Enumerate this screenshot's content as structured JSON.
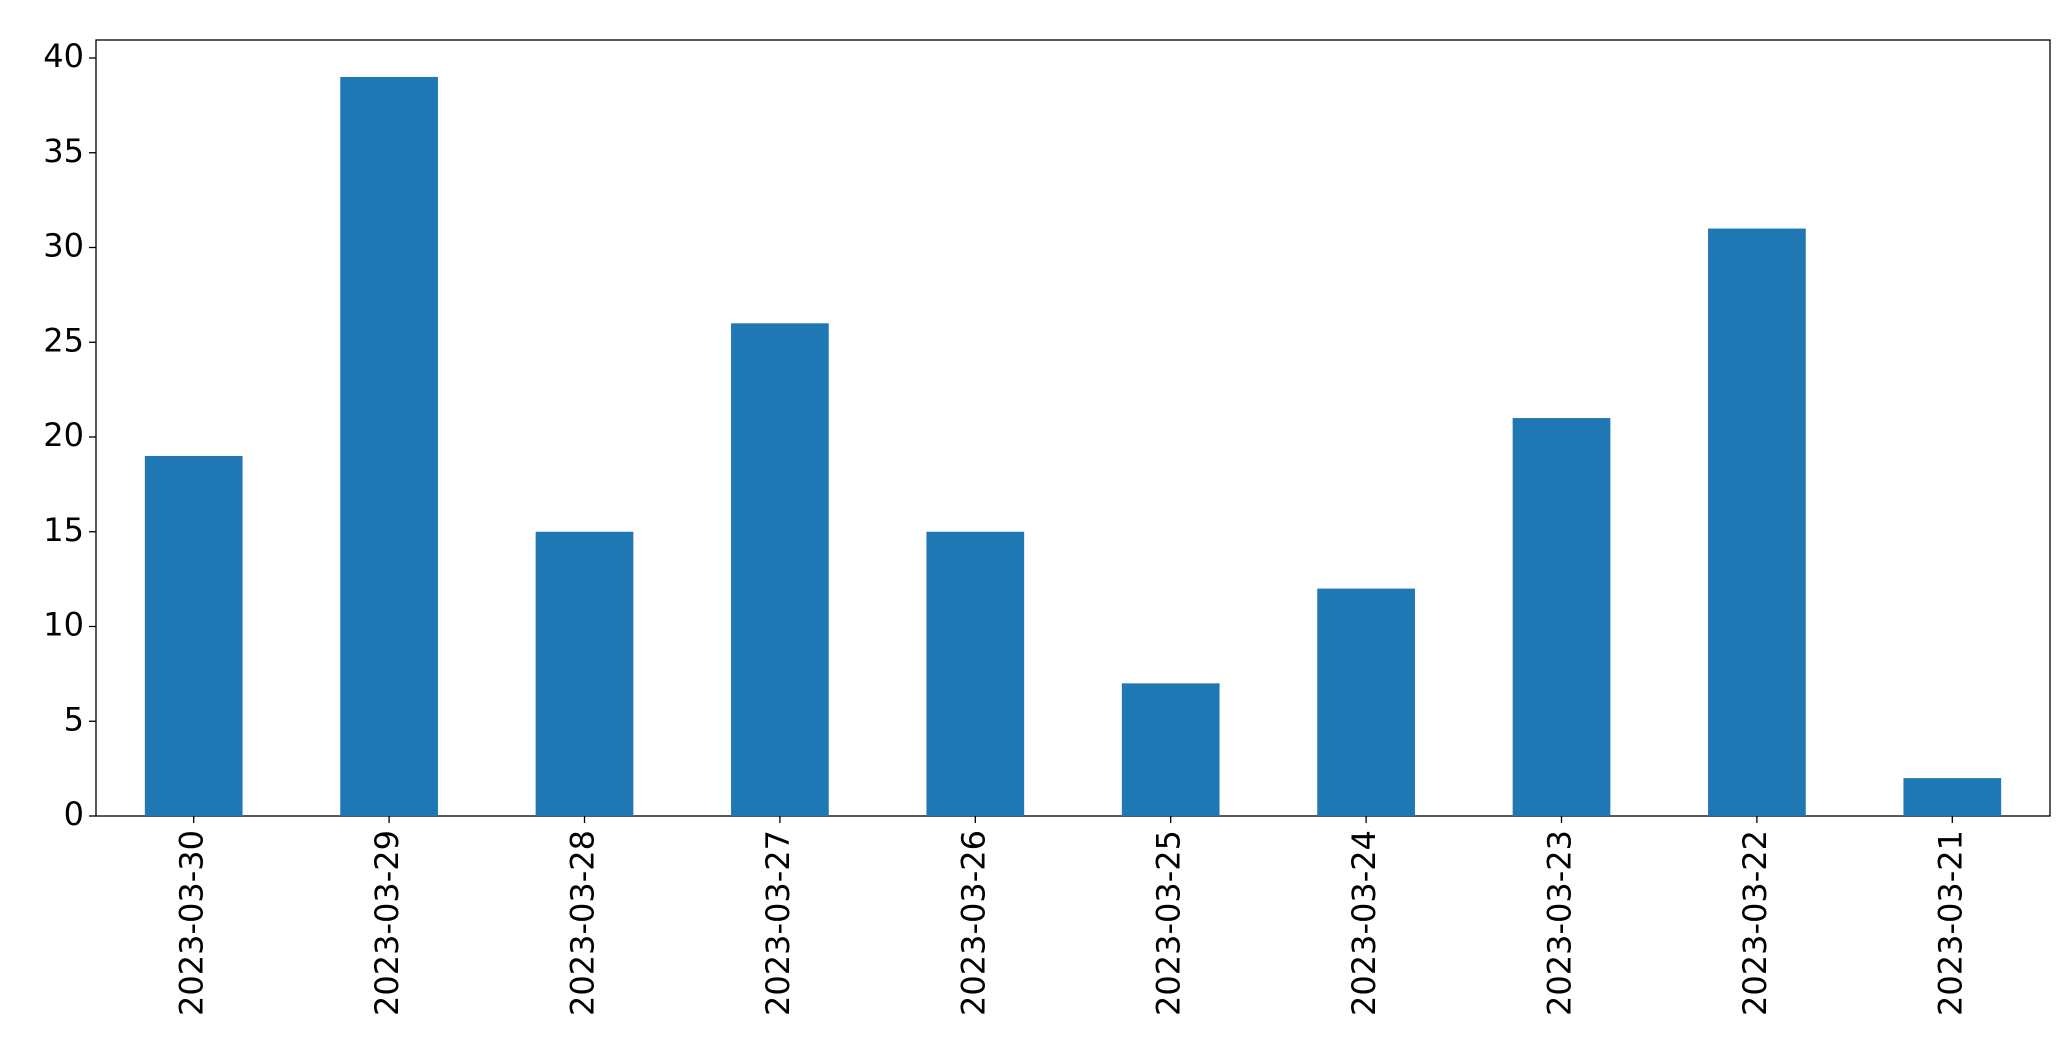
{
  "chart_data": {
    "type": "bar",
    "categories": [
      "2023-03-30",
      "2023-03-29",
      "2023-03-28",
      "2023-03-27",
      "2023-03-26",
      "2023-03-25",
      "2023-03-24",
      "2023-03-23",
      "2023-03-22",
      "2023-03-21"
    ],
    "values": [
      19,
      39,
      15,
      26,
      15,
      7,
      12,
      21,
      31,
      2
    ],
    "color": "#1f77b4",
    "ylim": [
      0,
      40.95
    ],
    "yticks": [
      0,
      5,
      10,
      15,
      20,
      25,
      30,
      35,
      40
    ],
    "grid": false
  }
}
